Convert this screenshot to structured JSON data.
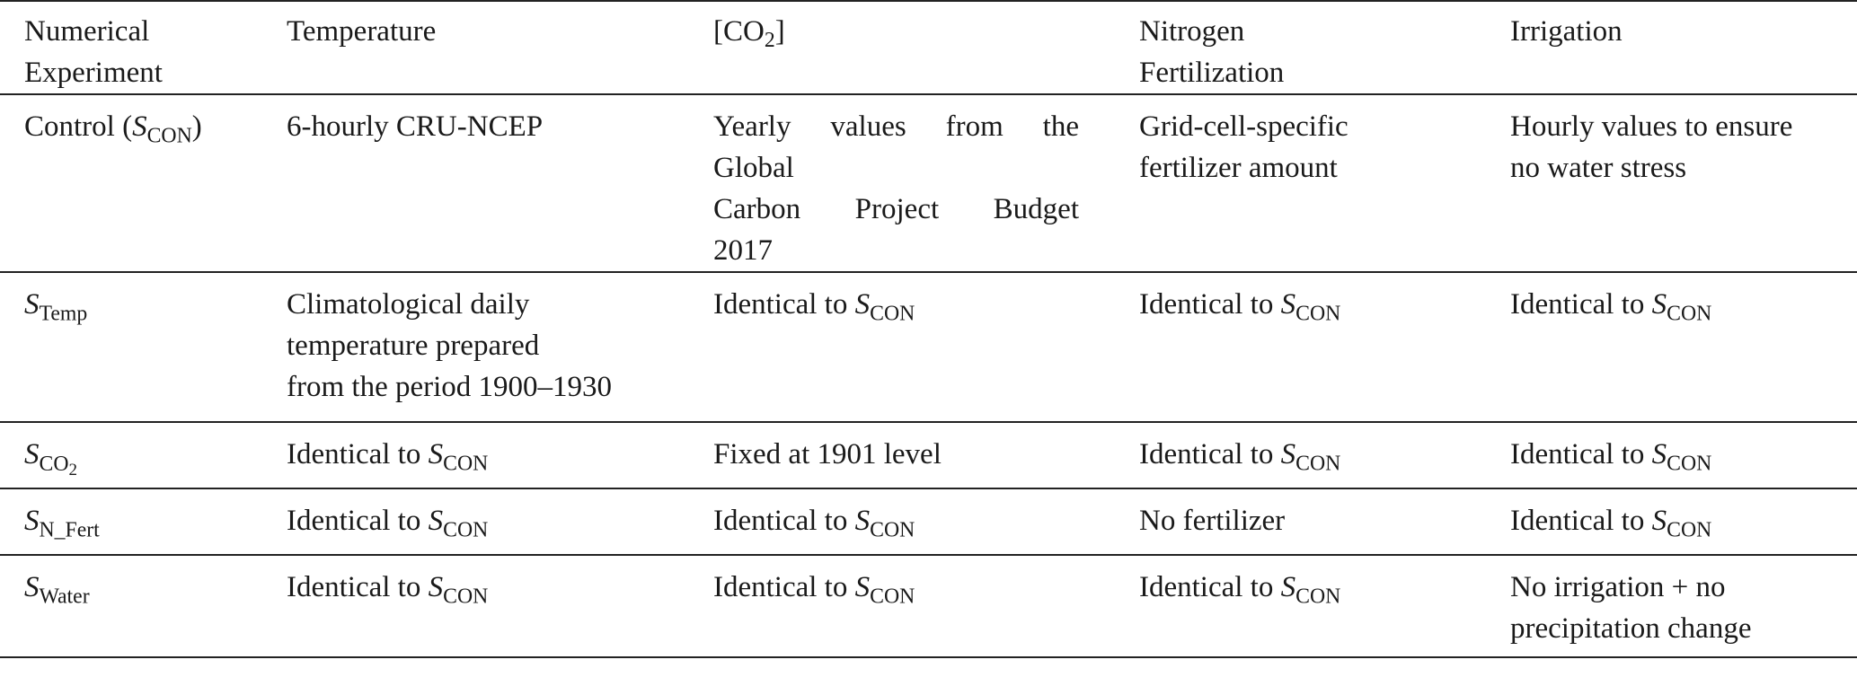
{
  "table": {
    "headers": [
      [
        "Numerical",
        "Experiment"
      ],
      [
        "Temperature"
      ],
      [
        "[CO",
        "2",
        "]"
      ],
      [
        "Nitrogen",
        "Fertilization"
      ],
      [
        "Irrigation"
      ]
    ],
    "symbol": {
      "letter": "S",
      "con_sub": "CON",
      "temp_sub": "Temp",
      "co2_sub": "CO",
      "co2_sub2": "2",
      "nfert_sub": "N_Fert",
      "water_sub": "Water"
    },
    "identical_prefix": "Identical to ",
    "rows": {
      "control": {
        "label_prefix": "Control (",
        "label_suffix": ")",
        "temperature": "6-hourly CRU-NCEP",
        "co2_lines": [
          "Yearly values from the",
          "Global",
          "Carbon Project Budget",
          "2017"
        ],
        "nitrogen_lines": [
          "Grid-cell-specific",
          "fertilizer amount"
        ],
        "irrigation_lines": [
          "Hourly values to ensure",
          "no water stress"
        ]
      },
      "temp": {
        "temperature_lines": [
          "Climatological daily",
          "temperature prepared",
          "from the period 1900–1930"
        ]
      },
      "co2": {
        "co2": "Fixed at 1901 level"
      },
      "nfert": {
        "nitrogen": "No fertilizer"
      },
      "water": {
        "irrigation_lines": [
          "No irrigation + no",
          "precipitation change"
        ]
      }
    }
  }
}
